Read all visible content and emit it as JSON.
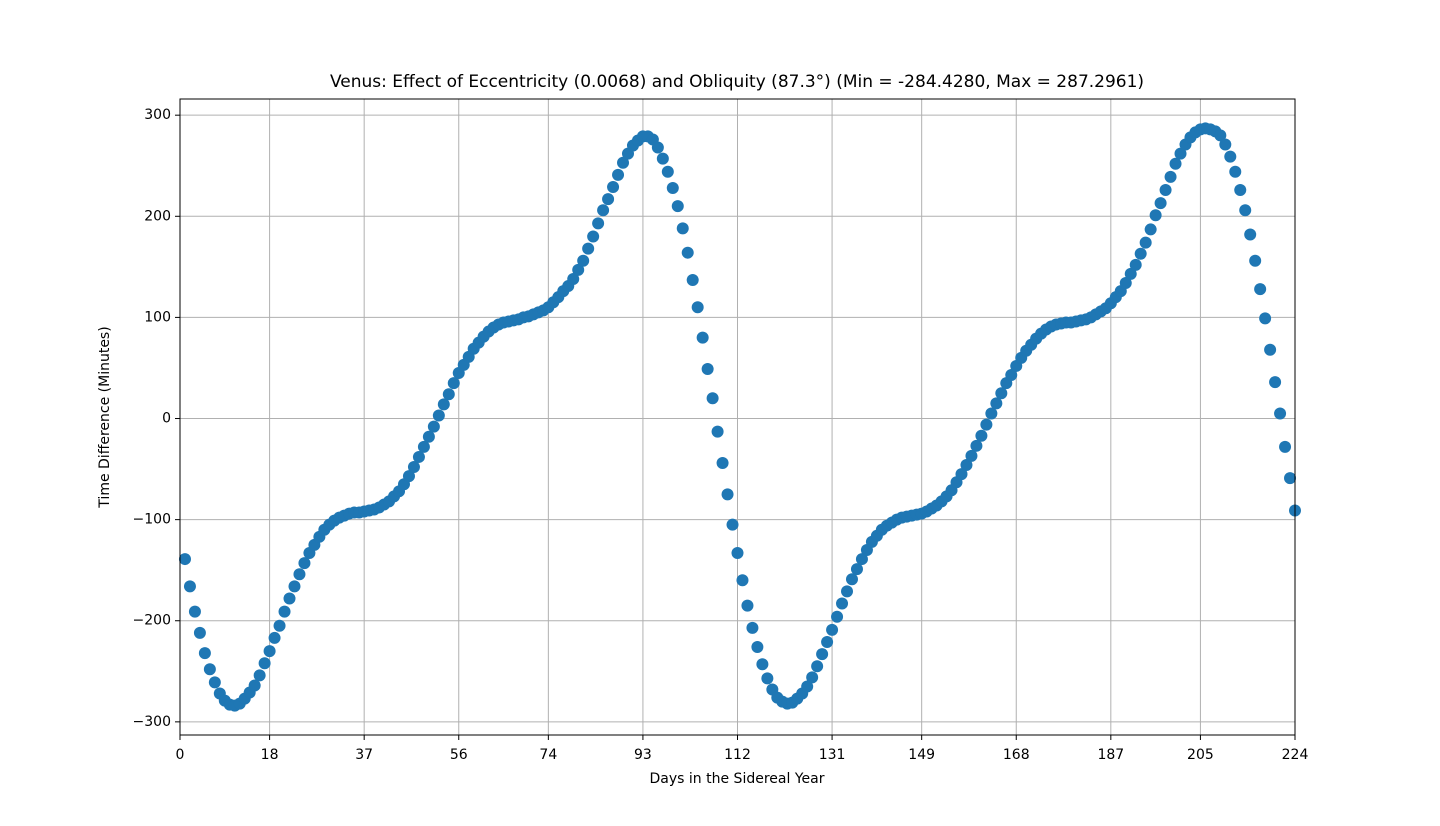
{
  "chart_data": {
    "type": "scatter",
    "title": "Venus: Effect of Eccentricity (0.0068) and Obliquity (87.3°) (Min = -284.4280, Max = 287.2961)",
    "x_label": "Days in the Sidereal Year",
    "y_label": "Time Difference (Minutes)",
    "grid": true,
    "xlim": [
      0,
      224
    ],
    "ylim": [
      -313,
      316
    ],
    "xticks": [
      0,
      18,
      37,
      56,
      74,
      93,
      112,
      131,
      149,
      168,
      187,
      205,
      224
    ],
    "yticks": [
      {
        "value": -300,
        "label": "−300"
      },
      {
        "value": -200,
        "label": "−200"
      },
      {
        "value": -100,
        "label": "−100"
      },
      0,
      100,
      200,
      300
    ],
    "series": [
      {
        "color": "#1f77b4",
        "x": [
          1,
          2,
          3,
          4,
          5,
          6,
          7,
          8,
          9,
          10,
          11,
          12,
          13,
          14,
          15,
          16,
          17,
          18,
          19,
          20,
          21,
          22,
          23,
          24,
          25,
          26,
          27,
          28,
          29,
          30,
          31,
          32,
          33,
          34,
          35,
          36,
          37,
          38,
          39,
          40,
          41,
          42,
          43,
          44,
          45,
          46,
          47,
          48,
          49,
          50,
          51,
          52,
          53,
          54,
          55,
          56,
          57,
          58,
          59,
          60,
          61,
          62,
          63,
          64,
          65,
          66,
          67,
          68,
          69,
          70,
          71,
          72,
          73,
          74,
          75,
          76,
          77,
          78,
          79,
          80,
          81,
          82,
          83,
          84,
          85,
          86,
          87,
          88,
          89,
          90,
          91,
          92,
          93,
          94,
          95,
          96,
          97,
          98,
          99,
          100,
          101,
          102,
          103,
          104,
          105,
          106,
          107,
          108,
          109,
          110,
          111,
          112,
          113,
          114,
          115,
          116,
          117,
          118,
          119,
          120,
          121,
          122,
          123,
          124,
          125,
          126,
          127,
          128,
          129,
          130,
          131,
          132,
          133,
          134,
          135,
          136,
          137,
          138,
          139,
          140,
          141,
          142,
          143,
          144,
          145,
          146,
          147,
          148,
          149,
          150,
          151,
          152,
          153,
          154,
          155,
          156,
          157,
          158,
          159,
          160,
          161,
          162,
          163,
          164,
          165,
          166,
          167,
          168,
          169,
          170,
          171,
          172,
          173,
          174,
          175,
          176,
          177,
          178,
          179,
          180,
          181,
          182,
          183,
          184,
          185,
          186,
          187,
          188,
          189,
          190,
          191,
          192,
          193,
          194,
          195,
          196,
          197,
          198,
          199,
          200,
          201,
          202,
          203,
          204,
          205,
          206,
          207,
          208,
          209,
          210,
          211,
          212,
          213,
          214,
          215,
          216,
          217,
          218,
          219,
          220,
          221,
          222,
          223,
          224
        ],
        "values": [
          -139,
          -166,
          -191,
          -212,
          -232,
          -248,
          -261,
          -272,
          -279,
          -283,
          -284,
          -282,
          -277,
          -271,
          -264,
          -254,
          -242,
          -230,
          -217,
          -205,
          -191,
          -178,
          -166,
          -154,
          -143,
          -133,
          -125,
          -117,
          -110,
          -105,
          -101,
          -98,
          -96,
          -94,
          -93,
          -93,
          -92,
          -91,
          -90,
          -88,
          -85,
          -82,
          -77,
          -72,
          -65,
          -57,
          -48,
          -38,
          -28,
          -18,
          -8,
          3,
          14,
          24,
          35,
          45,
          53,
          61,
          69,
          75,
          81,
          86,
          90,
          93,
          95,
          96,
          97,
          98,
          100,
          101,
          103,
          105,
          107,
          110,
          115,
          120,
          126,
          131,
          138,
          147,
          156,
          168,
          180,
          193,
          206,
          217,
          229,
          241,
          253,
          262,
          270,
          275,
          279,
          279,
          276,
          268,
          257,
          244,
          228,
          210,
          188,
          164,
          137,
          110,
          80,
          49,
          20,
          -13,
          -44,
          -75,
          -105,
          -133,
          -160,
          -185,
          -207,
          -226,
          -243,
          -257,
          -268,
          -276,
          -280,
          -282,
          -281,
          -277,
          -272,
          -265,
          -256,
          -245,
          -233,
          -221,
          -209,
          -196,
          -183,
          -171,
          -159,
          -149,
          -139,
          -130,
          -122,
          -116,
          -110,
          -106,
          -103,
          -100,
          -98,
          -97,
          -96,
          -95,
          -94,
          -92,
          -89,
          -86,
          -82,
          -77,
          -71,
          -63,
          -55,
          -46,
          -37,
          -27,
          -17,
          -6,
          5,
          15,
          25,
          35,
          43,
          52,
          60,
          67,
          73,
          79,
          84,
          88,
          91,
          93,
          94,
          95,
          95,
          96,
          97,
          98,
          100,
          103,
          106,
          109,
          114,
          120,
          126,
          134,
          143,
          152,
          163,
          174,
          187,
          201,
          213,
          226,
          239,
          252,
          262,
          271,
          278,
          283,
          286,
          287,
          286,
          284,
          280,
          271,
          259,
          244,
          226,
          206,
          182,
          156,
          128,
          99,
          68,
          36,
          5,
          -28,
          -59,
          -91
        ]
      }
    ]
  }
}
